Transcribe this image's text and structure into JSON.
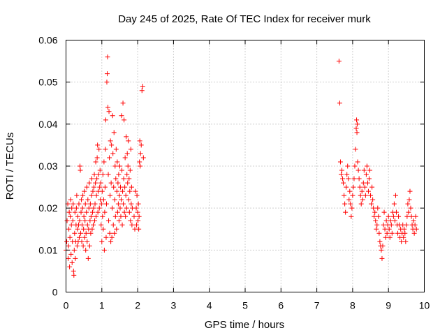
{
  "chart_data": {
    "type": "scatter",
    "title": "Day 245 of 2025, Rate Of TEC Index for receiver murk",
    "xlabel": "GPS time / hours",
    "ylabel": "ROTI / TECUs",
    "xlim": [
      0,
      10
    ],
    "ylim": [
      0,
      0.06
    ],
    "grid": true,
    "marker": "+",
    "color": "#ff0000",
    "xticks": [
      0,
      1,
      2,
      3,
      4,
      5,
      6,
      7,
      8,
      9,
      10
    ],
    "xtick_labels": [
      "0",
      "1",
      "2",
      "3",
      "4",
      "5",
      "6",
      "7",
      "8",
      "9",
      "10"
    ],
    "yticks": [
      0,
      0.01,
      0.02,
      0.03,
      0.04,
      0.05,
      0.06
    ],
    "ytick_labels": [
      "0",
      "0.01",
      "0.02",
      "0.03",
      "0.04",
      "0.05",
      "0.06"
    ],
    "series": [
      {
        "name": "ROTI",
        "points": [
          [
            0.0,
            0.01
          ],
          [
            0.02,
            0.012
          ],
          [
            0.03,
            0.017
          ],
          [
            0.05,
            0.021
          ],
          [
            0.06,
            0.008
          ],
          [
            0.07,
            0.011
          ],
          [
            0.08,
            0.015
          ],
          [
            0.09,
            0.019
          ],
          [
            0.1,
            0.006
          ],
          [
            0.11,
            0.013
          ],
          [
            0.12,
            0.018
          ],
          [
            0.13,
            0.022
          ],
          [
            0.14,
            0.009
          ],
          [
            0.15,
            0.016
          ],
          [
            0.16,
            0.02
          ],
          [
            0.17,
            0.007
          ],
          [
            0.18,
            0.012
          ],
          [
            0.19,
            0.017
          ],
          [
            0.2,
            0.021
          ],
          [
            0.21,
            0.005
          ],
          [
            0.22,
            0.004
          ],
          [
            0.23,
            0.01
          ],
          [
            0.24,
            0.014
          ],
          [
            0.25,
            0.019
          ],
          [
            0.26,
            0.008
          ],
          [
            0.27,
            0.012
          ],
          [
            0.28,
            0.016
          ],
          [
            0.29,
            0.02
          ],
          [
            0.3,
            0.023
          ],
          [
            0.31,
            0.011
          ],
          [
            0.32,
            0.015
          ],
          [
            0.33,
            0.018
          ],
          [
            0.34,
            0.012
          ],
          [
            0.35,
            0.016
          ],
          [
            0.36,
            0.021
          ],
          [
            0.37,
            0.013
          ],
          [
            0.38,
            0.017
          ],
          [
            0.39,
            0.03
          ],
          [
            0.4,
            0.029
          ],
          [
            0.41,
            0.014
          ],
          [
            0.42,
            0.019
          ],
          [
            0.43,
            0.022
          ],
          [
            0.44,
            0.012
          ],
          [
            0.45,
            0.016
          ],
          [
            0.46,
            0.02
          ],
          [
            0.47,
            0.023
          ],
          [
            0.48,
            0.011
          ],
          [
            0.49,
            0.015
          ],
          [
            0.5,
            0.018
          ],
          [
            0.51,
            0.024
          ],
          [
            0.52,
            0.013
          ],
          [
            0.53,
            0.017
          ],
          [
            0.54,
            0.021
          ],
          [
            0.55,
            0.01
          ],
          [
            0.56,
            0.014
          ],
          [
            0.57,
            0.019
          ],
          [
            0.58,
            0.025
          ],
          [
            0.59,
            0.012
          ],
          [
            0.6,
            0.016
          ],
          [
            0.61,
            0.022
          ],
          [
            0.62,
            0.008
          ],
          [
            0.63,
            0.015
          ],
          [
            0.64,
            0.02
          ],
          [
            0.65,
            0.026
          ],
          [
            0.66,
            0.011
          ],
          [
            0.67,
            0.017
          ],
          [
            0.68,
            0.021
          ],
          [
            0.69,
            0.014
          ],
          [
            0.7,
            0.018
          ],
          [
            0.71,
            0.023
          ],
          [
            0.72,
            0.027
          ],
          [
            0.73,
            0.015
          ],
          [
            0.74,
            0.019
          ],
          [
            0.75,
            0.024
          ],
          [
            0.76,
            0.016
          ],
          [
            0.77,
            0.02
          ],
          [
            0.78,
            0.025
          ],
          [
            0.79,
            0.028
          ],
          [
            0.8,
            0.017
          ],
          [
            0.81,
            0.021
          ],
          [
            0.82,
            0.026
          ],
          [
            0.83,
            0.031
          ],
          [
            0.84,
            0.018
          ],
          [
            0.85,
            0.023
          ],
          [
            0.86,
            0.027
          ],
          [
            0.87,
            0.032
          ],
          [
            0.88,
            0.035
          ],
          [
            0.89,
            0.019
          ],
          [
            0.9,
            0.024
          ],
          [
            0.91,
            0.028
          ],
          [
            0.92,
            0.034
          ],
          [
            0.93,
            0.02
          ],
          [
            0.94,
            0.025
          ],
          [
            0.95,
            0.029
          ],
          [
            0.96,
            0.022
          ],
          [
            0.97,
            0.026
          ],
          [
            0.98,
            0.016
          ],
          [
            0.99,
            0.021
          ],
          [
            1.0,
            0.012
          ],
          [
            1.01,
            0.024
          ],
          [
            1.02,
            0.018
          ],
          [
            1.03,
            0.028
          ],
          [
            1.04,
            0.015
          ],
          [
            1.05,
            0.022
          ],
          [
            1.06,
            0.031
          ],
          [
            1.07,
            0.01
          ],
          [
            1.08,
            0.019
          ],
          [
            1.09,
            0.025
          ],
          [
            1.1,
            0.034
          ],
          [
            1.11,
            0.041
          ],
          [
            1.12,
            0.013
          ],
          [
            1.13,
            0.021
          ],
          [
            1.14,
            0.05
          ],
          [
            1.15,
            0.052
          ],
          [
            1.16,
            0.056
          ],
          [
            1.17,
            0.044
          ],
          [
            1.18,
            0.028
          ],
          [
            1.19,
            0.017
          ],
          [
            1.2,
            0.043
          ],
          [
            1.21,
            0.032
          ],
          [
            1.22,
            0.014
          ],
          [
            1.23,
            0.023
          ],
          [
            1.24,
            0.036
          ],
          [
            1.25,
            0.012
          ],
          [
            1.26,
            0.026
          ],
          [
            1.27,
            0.035
          ],
          [
            1.28,
            0.013
          ],
          [
            1.29,
            0.02
          ],
          [
            1.3,
            0.042
          ],
          [
            1.31,
            0.033
          ],
          [
            1.32,
            0.016
          ],
          [
            1.33,
            0.025
          ],
          [
            1.34,
            0.038
          ],
          [
            1.35,
            0.014
          ],
          [
            1.36,
            0.022
          ],
          [
            1.37,
            0.03
          ],
          [
            1.38,
            0.018
          ],
          [
            1.39,
            0.027
          ],
          [
            1.4,
            0.034
          ],
          [
            1.41,
            0.015
          ],
          [
            1.42,
            0.024
          ],
          [
            1.43,
            0.031
          ],
          [
            1.44,
            0.019
          ],
          [
            1.45,
            0.026
          ],
          [
            1.46,
            0.021
          ],
          [
            1.47,
            0.028
          ],
          [
            1.48,
            0.017
          ],
          [
            1.49,
            0.023
          ],
          [
            1.5,
            0.03
          ],
          [
            1.51,
            0.02
          ],
          [
            1.52,
            0.025
          ],
          [
            1.53,
            0.018
          ],
          [
            1.54,
            0.022
          ],
          [
            1.55,
            0.042
          ],
          [
            1.56,
            0.029
          ],
          [
            1.57,
            0.016
          ],
          [
            1.58,
            0.024
          ],
          [
            1.59,
            0.045
          ],
          [
            1.6,
            0.021
          ],
          [
            1.61,
            0.027
          ],
          [
            1.62,
            0.041
          ],
          [
            1.63,
            0.019
          ],
          [
            1.64,
            0.025
          ],
          [
            1.65,
            0.032
          ],
          [
            1.66,
            0.018
          ],
          [
            1.67,
            0.023
          ],
          [
            1.68,
            0.037
          ],
          [
            1.69,
            0.02
          ],
          [
            1.7,
            0.028
          ],
          [
            1.71,
            0.033
          ],
          [
            1.72,
            0.026
          ],
          [
            1.73,
            0.03
          ],
          [
            1.74,
            0.036
          ],
          [
            1.75,
            0.022
          ],
          [
            1.76,
            0.027
          ],
          [
            1.77,
            0.019
          ],
          [
            1.78,
            0.024
          ],
          [
            1.79,
            0.029
          ],
          [
            1.8,
            0.017
          ],
          [
            1.81,
            0.034
          ],
          [
            1.82,
            0.021
          ],
          [
            1.83,
            0.025
          ],
          [
            1.84,
            0.016
          ],
          [
            1.85,
            0.02
          ],
          [
            1.9,
            0.018
          ],
          [
            1.92,
            0.015
          ],
          [
            1.94,
            0.024
          ],
          [
            1.96,
            0.02
          ],
          [
            1.97,
            0.016
          ],
          [
            1.98,
            0.023
          ],
          [
            2.0,
            0.019
          ],
          [
            2.01,
            0.017
          ],
          [
            2.02,
            0.021
          ],
          [
            2.03,
            0.015
          ],
          [
            2.04,
            0.018
          ],
          [
            2.05,
            0.031
          ],
          [
            2.06,
            0.036
          ],
          [
            2.07,
            0.03
          ],
          [
            2.08,
            0.033
          ],
          [
            2.1,
            0.035
          ],
          [
            2.12,
            0.048
          ],
          [
            2.14,
            0.049
          ],
          [
            2.16,
            0.032
          ],
          [
            7.62,
            0.055
          ],
          [
            7.64,
            0.045
          ],
          [
            7.66,
            0.031
          ],
          [
            7.68,
            0.028
          ],
          [
            7.7,
            0.029
          ],
          [
            7.72,
            0.027
          ],
          [
            7.74,
            0.026
          ],
          [
            7.76,
            0.023
          ],
          [
            7.78,
            0.021
          ],
          [
            7.8,
            0.019
          ],
          [
            7.82,
            0.025
          ],
          [
            7.84,
            0.028
          ],
          [
            7.86,
            0.03
          ],
          [
            7.88,
            0.027
          ],
          [
            7.9,
            0.022
          ],
          [
            7.92,
            0.024
          ],
          [
            7.94,
            0.021
          ],
          [
            7.96,
            0.018
          ],
          [
            7.98,
            0.02
          ],
          [
            8.0,
            0.023
          ],
          [
            8.02,
            0.025
          ],
          [
            8.04,
            0.027
          ],
          [
            8.06,
            0.03
          ],
          [
            8.08,
            0.034
          ],
          [
            8.1,
            0.039
          ],
          [
            8.11,
            0.041
          ],
          [
            8.12,
            0.038
          ],
          [
            8.13,
            0.04
          ],
          [
            8.14,
            0.031
          ],
          [
            8.16,
            0.029
          ],
          [
            8.18,
            0.027
          ],
          [
            8.2,
            0.025
          ],
          [
            8.22,
            0.023
          ],
          [
            8.24,
            0.021
          ],
          [
            8.26,
            0.024
          ],
          [
            8.28,
            0.022
          ],
          [
            8.3,
            0.026
          ],
          [
            8.32,
            0.029
          ],
          [
            8.34,
            0.025
          ],
          [
            8.36,
            0.023
          ],
          [
            8.38,
            0.028
          ],
          [
            8.4,
            0.03
          ],
          [
            8.42,
            0.026
          ],
          [
            8.44,
            0.024
          ],
          [
            8.46,
            0.027
          ],
          [
            8.48,
            0.029
          ],
          [
            8.5,
            0.023
          ],
          [
            8.52,
            0.021
          ],
          [
            8.54,
            0.025
          ],
          [
            8.56,
            0.022
          ],
          [
            8.58,
            0.02
          ],
          [
            8.6,
            0.018
          ],
          [
            8.62,
            0.019
          ],
          [
            8.64,
            0.017
          ],
          [
            8.66,
            0.015
          ],
          [
            8.68,
            0.016
          ],
          [
            8.7,
            0.02
          ],
          [
            8.72,
            0.018
          ],
          [
            8.74,
            0.014
          ],
          [
            8.76,
            0.012
          ],
          [
            8.78,
            0.011
          ],
          [
            8.8,
            0.01
          ],
          [
            8.82,
            0.008
          ],
          [
            8.84,
            0.011
          ],
          [
            8.86,
            0.016
          ],
          [
            8.88,
            0.019
          ],
          [
            8.9,
            0.015
          ],
          [
            8.92,
            0.013
          ],
          [
            8.94,
            0.017
          ],
          [
            8.96,
            0.014
          ],
          [
            8.98,
            0.016
          ],
          [
            9.0,
            0.018
          ],
          [
            9.02,
            0.015
          ],
          [
            9.04,
            0.013
          ],
          [
            9.06,
            0.017
          ],
          [
            9.08,
            0.016
          ],
          [
            9.1,
            0.014
          ],
          [
            9.12,
            0.019
          ],
          [
            9.14,
            0.018
          ],
          [
            9.16,
            0.021
          ],
          [
            9.18,
            0.017
          ],
          [
            9.2,
            0.023
          ],
          [
            9.22,
            0.019
          ],
          [
            9.24,
            0.016
          ],
          [
            9.26,
            0.014
          ],
          [
            9.28,
            0.018
          ],
          [
            9.3,
            0.016
          ],
          [
            9.32,
            0.013
          ],
          [
            9.34,
            0.015
          ],
          [
            9.36,
            0.012
          ],
          [
            9.38,
            0.014
          ],
          [
            9.4,
            0.016
          ],
          [
            9.42,
            0.013
          ],
          [
            9.44,
            0.015
          ],
          [
            9.46,
            0.014
          ],
          [
            9.48,
            0.012
          ],
          [
            9.5,
            0.016
          ],
          [
            9.52,
            0.018
          ],
          [
            9.54,
            0.021
          ],
          [
            9.56,
            0.019
          ],
          [
            9.58,
            0.022
          ],
          [
            9.6,
            0.024
          ],
          [
            9.62,
            0.02
          ],
          [
            9.64,
            0.018
          ],
          [
            9.66,
            0.016
          ],
          [
            9.68,
            0.015
          ],
          [
            9.7,
            0.017
          ],
          [
            9.72,
            0.014
          ],
          [
            9.74,
            0.016
          ],
          [
            9.76,
            0.018
          ],
          [
            9.78,
            0.015
          ]
        ]
      }
    ]
  }
}
